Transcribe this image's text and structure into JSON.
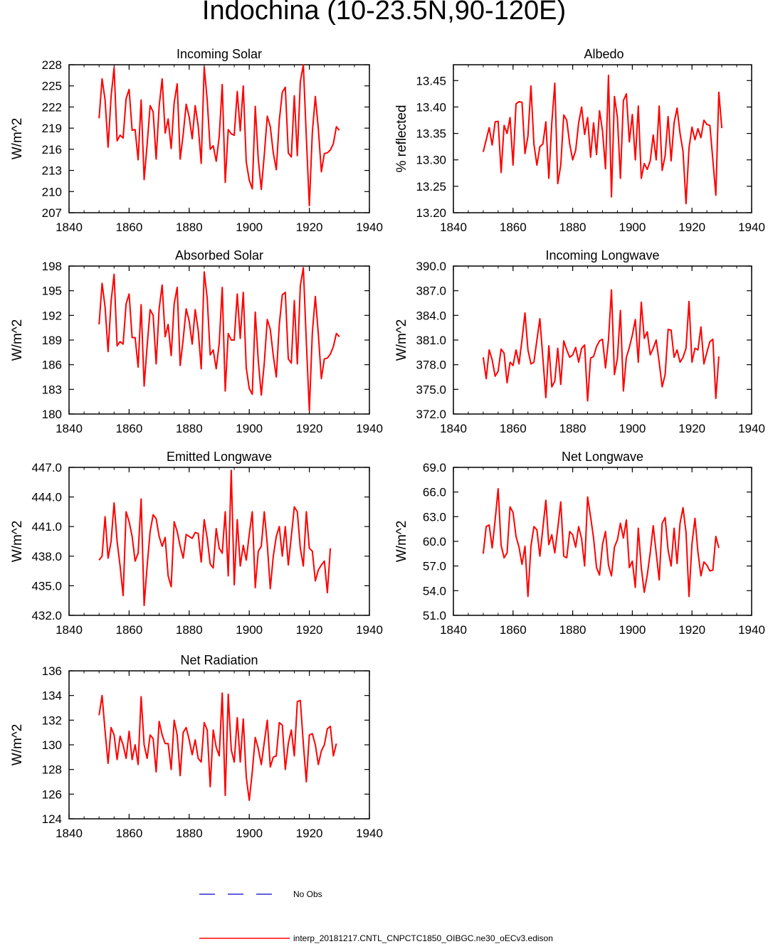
{
  "title": "Indochina (10-23.5N,90-120E)",
  "legend": {
    "obs_label": "No Obs",
    "obs_color": "#0000cc",
    "model_label": "interp_20181217.CNTL_CNPCTC1850_OIBGC.ne30_oECv3.edison",
    "model_color": "#ff0000"
  },
  "chart_data": [
    {
      "type": "line",
      "title": "Incoming Solar",
      "ylabel": "W/m^2",
      "xlim": [
        1840,
        1940
      ],
      "xticks": [
        "1840",
        "1860",
        "1880",
        "1900",
        "1920",
        "1940"
      ],
      "ylim": [
        207,
        228
      ],
      "yticks": [
        "207",
        "210",
        "213",
        "216",
        "219",
        "222",
        "225",
        "228"
      ],
      "x_start": 1850,
      "series": [
        {
          "color": "#ff0000",
          "values": [
            220.4,
            226.0,
            223.0,
            216.3,
            223.5,
            227.6,
            217.2,
            218.0,
            217.6,
            223.2,
            224.5,
            218.7,
            218.8,
            214.5,
            223.0,
            211.7,
            216.7,
            222.2,
            221.3,
            214.6,
            222.1,
            226.0,
            218.3,
            220.3,
            216.1,
            222.6,
            225.3,
            214.6,
            218.1,
            222.4,
            220.6,
            217.5,
            222.2,
            219.3,
            214.0,
            227.7,
            223.0,
            216.0,
            216.5,
            214.3,
            217.8,
            225.2,
            211.3,
            218.8,
            218.2,
            218.0,
            224.2,
            218.6,
            225.0,
            214.2,
            211.6,
            210.4,
            222.1,
            214.6,
            210.3,
            215.2,
            220.7,
            219.2,
            215.5,
            213.1,
            220.1,
            224.1,
            224.8,
            215.5,
            214.9,
            223.6,
            215.1,
            225.6,
            228.0,
            217.7,
            208.0,
            218.4,
            223.5,
            218.9,
            212.8,
            215.4,
            215.5,
            215.9,
            216.8,
            219.2,
            218.7
          ]
        }
      ]
    },
    {
      "type": "line",
      "title": "Albedo",
      "ylabel": "% reflected",
      "xlim": [
        1840,
        1940
      ],
      "xticks": [
        "1840",
        "1860",
        "1880",
        "1900",
        "1920",
        "1940"
      ],
      "ylim": [
        13.2,
        13.48
      ],
      "yticks": [
        "13.20",
        "13.25",
        "13.30",
        "13.35",
        "13.40",
        "13.45"
      ],
      "x_start": 1850,
      "series": [
        {
          "color": "#ff0000",
          "values": [
            13.315,
            13.338,
            13.361,
            13.328,
            13.372,
            13.373,
            13.276,
            13.365,
            13.35,
            13.38,
            13.29,
            13.406,
            13.41,
            13.409,
            13.312,
            13.345,
            13.44,
            13.33,
            13.29,
            13.325,
            13.33,
            13.372,
            13.265,
            13.37,
            13.445,
            13.255,
            13.29,
            13.385,
            13.375,
            13.33,
            13.3,
            13.318,
            13.37,
            13.4,
            13.348,
            13.38,
            13.305,
            13.37,
            13.31,
            13.393,
            13.355,
            13.283,
            13.46,
            13.23,
            13.42,
            13.38,
            13.265,
            13.412,
            13.425,
            13.334,
            13.386,
            13.3,
            13.402,
            13.265,
            13.293,
            13.282,
            13.298,
            13.347,
            13.3,
            13.402,
            13.28,
            13.308,
            13.382,
            13.298,
            13.37,
            13.398,
            13.35,
            13.316,
            13.217,
            13.322,
            13.362,
            13.338,
            13.359,
            13.342,
            13.375,
            13.367,
            13.365,
            13.3,
            13.233,
            13.428,
            13.36
          ]
        }
      ]
    },
    {
      "type": "line",
      "title": "Absorbed Solar",
      "ylabel": "W/m^2",
      "xlim": [
        1840,
        1940
      ],
      "xticks": [
        "1840",
        "1860",
        "1880",
        "1900",
        "1920",
        "1940"
      ],
      "ylim": [
        180,
        198
      ],
      "yticks": [
        "180",
        "183",
        "186",
        "189",
        "192",
        "195",
        "198"
      ],
      "x_start": 1850,
      "series": [
        {
          "color": "#ff0000",
          "values": [
            190.9,
            195.9,
            193.0,
            187.6,
            193.7,
            197.0,
            188.3,
            188.8,
            188.5,
            193.4,
            194.6,
            189.3,
            189.3,
            185.7,
            193.3,
            183.4,
            188.3,
            192.7,
            192.0,
            186.1,
            192.8,
            195.7,
            189.4,
            190.9,
            187.1,
            193.4,
            195.4,
            185.9,
            189.1,
            192.8,
            191.3,
            188.5,
            192.7,
            190.2,
            185.5,
            197.3,
            194.1,
            187.2,
            187.8,
            185.5,
            188.6,
            195.4,
            182.8,
            189.8,
            189.0,
            189.0,
            194.6,
            189.2,
            194.8,
            185.6,
            183.1,
            182.4,
            192.4,
            186.5,
            182.3,
            186.2,
            191.5,
            190.3,
            187.1,
            184.5,
            190.9,
            194.5,
            194.8,
            186.7,
            186.2,
            193.8,
            186.1,
            195.6,
            197.8,
            188.8,
            180.4,
            189.9,
            194.3,
            189.7,
            184.3,
            186.7,
            186.8,
            187.3,
            188.2,
            189.8,
            189.4
          ]
        }
      ]
    },
    {
      "type": "line",
      "title": "Incoming Longwave",
      "ylabel": "W/m^2",
      "xlim": [
        1840,
        1940
      ],
      "xticks": [
        "1840",
        "1860",
        "1880",
        "1900",
        "1920",
        "1940"
      ],
      "ylim": [
        372,
        390
      ],
      "yticks": [
        "372.0",
        "375.0",
        "378.0",
        "381.0",
        "384.0",
        "387.0",
        "390.0"
      ],
      "x_start": 1850,
      "series": [
        {
          "color": "#ff0000",
          "values": [
            378.9,
            376.3,
            379.8,
            378.6,
            376.6,
            377.2,
            379.9,
            379.4,
            375.8,
            378.3,
            377.9,
            379.8,
            378.1,
            381.0,
            384.3,
            379.8,
            378.1,
            378.3,
            381.0,
            383.6,
            378.8,
            374.0,
            380.3,
            375.3,
            376.0,
            380.0,
            375.6,
            380.9,
            379.8,
            378.9,
            379.2,
            380.1,
            378.3,
            380.0,
            380.4,
            373.6,
            378.8,
            379.0,
            380.2,
            380.9,
            381.1,
            377.6,
            381.0,
            387.1,
            376.8,
            378.8,
            384.6,
            374.8,
            378.9,
            380.1,
            381.6,
            383.5,
            378.3,
            385.6,
            381.2,
            382.0,
            379.2,
            380.0,
            381.0,
            378.3,
            375.3,
            376.8,
            382.3,
            382.2,
            378.9,
            379.8,
            378.3,
            378.9,
            380.0,
            385.7,
            378.3,
            380.0,
            379.8,
            382.6,
            378.1,
            379.5,
            380.8,
            381.1,
            373.9,
            379.0
          ]
        }
      ]
    },
    {
      "type": "line",
      "title": "Emitted Longwave",
      "ylabel": "W/m^2",
      "xlim": [
        1840,
        1940
      ],
      "xticks": [
        "1840",
        "1860",
        "1880",
        "1900",
        "1920",
        "1940"
      ],
      "ylim": [
        432,
        447
      ],
      "yticks": [
        "432.0",
        "435.0",
        "438.0",
        "441.0",
        "444.0",
        "447.0"
      ],
      "x_start": 1850,
      "series": [
        {
          "color": "#ff0000",
          "values": [
            437.6,
            438.0,
            442.0,
            437.8,
            439.5,
            443.4,
            439.5,
            437.0,
            434.0,
            442.5,
            441.5,
            440.0,
            437.5,
            438.3,
            443.8,
            433.0,
            437.0,
            440.5,
            442.2,
            441.8,
            440.0,
            439.0,
            439.9,
            436.0,
            434.9,
            441.5,
            440.5,
            439.0,
            437.8,
            440.2,
            440.0,
            439.8,
            440.4,
            440.3,
            437.4,
            441.7,
            439.8,
            437.2,
            436.8,
            440.8,
            438.8,
            438.3,
            442.5,
            436.0,
            446.7,
            435.1,
            441.7,
            437.0,
            439.1,
            437.6,
            440.2,
            442.5,
            434.8,
            438.5,
            439.0,
            442.5,
            439.2,
            434.7,
            438.0,
            440.0,
            441.0,
            438.0,
            441.0,
            437.1,
            440.0,
            443.0,
            442.5,
            438.8,
            437.0,
            442.5,
            438.8,
            438.5,
            435.5,
            436.6,
            437.1,
            437.5,
            434.3,
            438.8
          ]
        }
      ]
    },
    {
      "type": "line",
      "title": "Net Longwave",
      "ylabel": "W/m^2",
      "xlim": [
        1840,
        1940
      ],
      "xticks": [
        "1840",
        "1860",
        "1880",
        "1900",
        "1920",
        "1940"
      ],
      "ylim": [
        51,
        69
      ],
      "yticks": [
        "51.0",
        "54.0",
        "57.0",
        "60.0",
        "63.0",
        "66.0",
        "69.0"
      ],
      "x_start": 1850,
      "series": [
        {
          "color": "#ff0000",
          "values": [
            58.5,
            61.8,
            62.0,
            59.2,
            62.6,
            66.4,
            59.5,
            58.0,
            58.6,
            64.2,
            63.5,
            60.6,
            59.3,
            57.2,
            59.4,
            53.3,
            59.4,
            61.8,
            61.4,
            58.2,
            61.6,
            65.0,
            59.6,
            60.8,
            58.6,
            61.6,
            64.8,
            58.2,
            58.0,
            61.2,
            60.8,
            59.3,
            61.8,
            60.3,
            57.0,
            65.4,
            63.0,
            60.4,
            56.8,
            55.9,
            59.6,
            61.2,
            57.1,
            55.8,
            59.3,
            60.2,
            62.2,
            60.4,
            62.6,
            56.8,
            57.6,
            54.4,
            61.6,
            56.8,
            53.8,
            55.9,
            58.6,
            61.9,
            58.6,
            55.3,
            62.2,
            62.9,
            58.9,
            57.0,
            61.6,
            57.3,
            62.2,
            64.1,
            61.1,
            53.3,
            59.7,
            62.8,
            58.7,
            55.8,
            57.5,
            57.1,
            56.4,
            56.5,
            60.6,
            59.2
          ]
        }
      ]
    },
    {
      "type": "line",
      "title": "Net Radiation",
      "ylabel": "W/m^2",
      "xlim": [
        1840,
        1940
      ],
      "xticks": [
        "1840",
        "1860",
        "1880",
        "1900",
        "1920",
        "1940"
      ],
      "ylim": [
        124,
        136
      ],
      "yticks": [
        "124",
        "126",
        "128",
        "130",
        "132",
        "134",
        "136"
      ],
      "x_start": 1850,
      "series": [
        {
          "color": "#ff0000",
          "values": [
            132.4,
            134.0,
            131.1,
            128.5,
            131.4,
            130.8,
            128.8,
            130.7,
            130.0,
            128.9,
            131.1,
            128.8,
            130.0,
            128.4,
            133.9,
            130.0,
            128.9,
            130.8,
            130.5,
            127.8,
            131.9,
            130.8,
            130.1,
            130.1,
            128.0,
            132.0,
            130.8,
            127.5,
            131.0,
            131.4,
            130.4,
            129.2,
            130.4,
            128.9,
            128.6,
            131.8,
            131.2,
            126.6,
            131.2,
            129.8,
            129.1,
            134.2,
            125.9,
            134.1,
            129.6,
            128.6,
            132.2,
            128.6,
            132.1,
            127.4,
            125.5,
            127.8,
            130.6,
            129.7,
            128.4,
            130.2,
            132.0,
            128.2,
            129.0,
            129.1,
            131.8,
            131.6,
            128.0,
            130.1,
            131.2,
            129.1,
            133.5,
            133.6,
            130.1,
            127.0,
            130.8,
            130.9,
            130.0,
            128.4,
            129.5,
            130.0,
            131.3,
            131.5,
            129.1,
            130.1
          ]
        }
      ]
    }
  ]
}
